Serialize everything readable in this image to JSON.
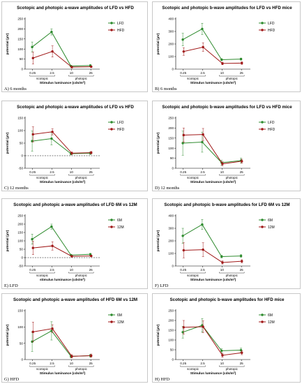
{
  "chart_data": [
    {
      "panel_label": "A) 6 months",
      "type": "line",
      "title": "Scotopic and photopic a-wave amplitudes of LFD vs HFD",
      "xlabel": "Stimulus luminance (cds/m²)",
      "ylabel": "potential (μV)",
      "x_tick_labels": [
        "0.25",
        "2.5",
        "10",
        "25"
      ],
      "group_labels": [
        "scotopic",
        "photopic"
      ],
      "yticks": [
        0,
        50,
        100,
        150,
        200,
        250
      ],
      "ylim": [
        0,
        250
      ],
      "zero_line": false,
      "legend_position": "top-right",
      "series": [
        {
          "name": "LFD",
          "color": "#2e8b2e",
          "values": [
            110,
            185,
            15,
            18
          ],
          "errors": [
            25,
            15,
            4,
            4
          ]
        },
        {
          "name": "HFD",
          "color": "#a01818",
          "values": [
            55,
            88,
            10,
            12
          ],
          "errors": [
            30,
            28,
            4,
            4
          ]
        }
      ]
    },
    {
      "panel_label": "B) 6 months",
      "type": "line",
      "title": "Scotopic and photopic b-wave amplitudes for LFD vs HFD mice",
      "xlabel": "Stimulus luminance (cds/m²)",
      "ylabel": "potential (μV)",
      "x_tick_labels": [
        "0.25",
        "2.5",
        "10",
        "25"
      ],
      "group_labels": [
        "scotopic",
        "photopic"
      ],
      "yticks": [
        0,
        100,
        200,
        300,
        400
      ],
      "ylim": [
        0,
        400
      ],
      "zero_line": false,
      "legend_position": "top-right",
      "series": [
        {
          "name": "LFD",
          "color": "#2e8b2e",
          "values": [
            235,
            320,
            75,
            80
          ],
          "errors": [
            50,
            45,
            8,
            8
          ]
        },
        {
          "name": "HFD",
          "color": "#a01818",
          "values": [
            140,
            175,
            45,
            48
          ],
          "errors": [
            30,
            35,
            10,
            10
          ]
        }
      ]
    },
    {
      "panel_label": "C) 12 months",
      "type": "line",
      "title": "Scotopic and photopic a-wave amplitudes of LFD vs HFD",
      "xlabel": "Stimulus luminance (cds/m²)",
      "ylabel": "potential (μV)",
      "x_tick_labels": [
        "0.25",
        "2.5",
        "10",
        "25"
      ],
      "group_labels": [
        "scotopic",
        "photopic"
      ],
      "yticks": [
        -50,
        0,
        50,
        100,
        150
      ],
      "ylim": [
        -50,
        150
      ],
      "zero_line": true,
      "legend_position": "top-right",
      "series": [
        {
          "name": "LFD",
          "color": "#2e8b2e",
          "values": [
            58,
            68,
            8,
            10
          ],
          "errors": [
            40,
            25,
            5,
            5
          ]
        },
        {
          "name": "HFD",
          "color": "#a01818",
          "values": [
            85,
            95,
            10,
            12
          ],
          "errors": [
            30,
            12,
            5,
            5
          ]
        }
      ]
    },
    {
      "panel_label": "D) 12 months",
      "type": "line",
      "title": "Scotopic and photopic b-wave amplitudes for LFD vs HFD mice",
      "xlabel": "Stimulus luminance (cds/m²)",
      "ylabel": "potential (μV)",
      "x_tick_labels": [
        "0.25",
        "2.5",
        "10",
        "25"
      ],
      "group_labels": [
        "scotopic",
        "photopic"
      ],
      "yticks": [
        0,
        50,
        100,
        150,
        200,
        250
      ],
      "ylim": [
        0,
        250
      ],
      "zero_line": false,
      "legend_position": "top-right",
      "series": [
        {
          "name": "LFD",
          "color": "#2e8b2e",
          "values": [
            125,
            130,
            28,
            38
          ],
          "errors": [
            60,
            50,
            12,
            12
          ]
        },
        {
          "name": "HFD",
          "color": "#a01818",
          "values": [
            165,
            168,
            22,
            35
          ],
          "errors": [
            35,
            30,
            10,
            10
          ]
        }
      ]
    },
    {
      "panel_label": "E) LFD",
      "type": "line",
      "title": "Scotopic and photopic a-wave amplitudes of LFD 6M vs 12M",
      "xlabel": "stimulus luminance (cds/m²)",
      "ylabel": "potential (μV)",
      "x_tick_labels": [
        "0.25",
        "2.5",
        "10",
        "25"
      ],
      "group_labels": [
        "scotopic",
        "photopic"
      ],
      "yticks": [
        -50,
        0,
        50,
        100,
        150,
        200,
        250
      ],
      "ylim": [
        -50,
        250
      ],
      "zero_line": true,
      "legend_position": "top-right",
      "series": [
        {
          "name": "6M",
          "color": "#2e8b2e",
          "values": [
            110,
            185,
            15,
            20
          ],
          "errors": [
            30,
            15,
            5,
            5
          ]
        },
        {
          "name": "12M",
          "color": "#a01818",
          "values": [
            58,
            70,
            8,
            10
          ],
          "errors": [
            40,
            25,
            5,
            5
          ]
        }
      ]
    },
    {
      "panel_label": "F) LFD",
      "type": "line",
      "title": "Scotopic and photopic b-wave amplitudes for LFD 6M vs 12M",
      "xlabel": "Stimulus luminance (cds/m²)",
      "ylabel": "potential (μV)",
      "x_tick_labels": [
        "0.25",
        "2.5",
        "10",
        "25"
      ],
      "group_labels": [
        "scotopic",
        "photopic"
      ],
      "yticks": [
        0,
        100,
        200,
        300,
        400
      ],
      "ylim": [
        0,
        400
      ],
      "zero_line": false,
      "legend_position": "top-right",
      "series": [
        {
          "name": "6M",
          "color": "#2e8b2e",
          "values": [
            240,
            330,
            75,
            80
          ],
          "errors": [
            60,
            40,
            10,
            10
          ]
        },
        {
          "name": "12M",
          "color": "#a01818",
          "values": [
            125,
            130,
            28,
            38
          ],
          "errors": [
            60,
            55,
            12,
            12
          ]
        }
      ]
    },
    {
      "panel_label": "G) HFD",
      "type": "line",
      "title": "Scotopic and photopic a-wave amplitudes of HFD 6M vs 12M",
      "xlabel": "Stimulus luminance (cds/m²)",
      "ylabel": "potential (μV)",
      "x_tick_labels": [
        "0.25",
        "2.5",
        "10",
        "25"
      ],
      "group_labels": [
        "scotopic",
        "photopic"
      ],
      "yticks": [
        0,
        50,
        100,
        150
      ],
      "ylim": [
        0,
        150
      ],
      "zero_line": false,
      "legend_position": "top-right",
      "series": [
        {
          "name": "6M",
          "color": "#2e8b2e",
          "values": [
            55,
            88,
            10,
            12
          ],
          "errors": [
            30,
            28,
            4,
            4
          ]
        },
        {
          "name": "12M",
          "color": "#a01818",
          "values": [
            85,
            95,
            10,
            12
          ],
          "errors": [
            30,
            12,
            5,
            5
          ]
        }
      ]
    },
    {
      "panel_label": "H) HFD",
      "type": "line",
      "title": "Scotopic and photopic b-wave amplitudes for HFD mice",
      "xlabel": "Stimulus luminance (cds/m²)",
      "ylabel": "potential (μV)",
      "x_tick_labels": [
        "0.25",
        "2.5",
        "10",
        "25"
      ],
      "group_labels": [
        "scotopic",
        "photopic"
      ],
      "yticks": [
        0,
        50,
        100,
        150,
        200,
        250
      ],
      "ylim": [
        0,
        250
      ],
      "zero_line": false,
      "legend_position": "top-right",
      "series": [
        {
          "name": "6M",
          "color": "#2e8b2e",
          "values": [
            140,
            175,
            45,
            48
          ],
          "errors": [
            30,
            35,
            10,
            10
          ]
        },
        {
          "name": "12M",
          "color": "#a01818",
          "values": [
            165,
            168,
            22,
            35
          ],
          "errors": [
            35,
            30,
            10,
            10
          ]
        }
      ]
    }
  ]
}
